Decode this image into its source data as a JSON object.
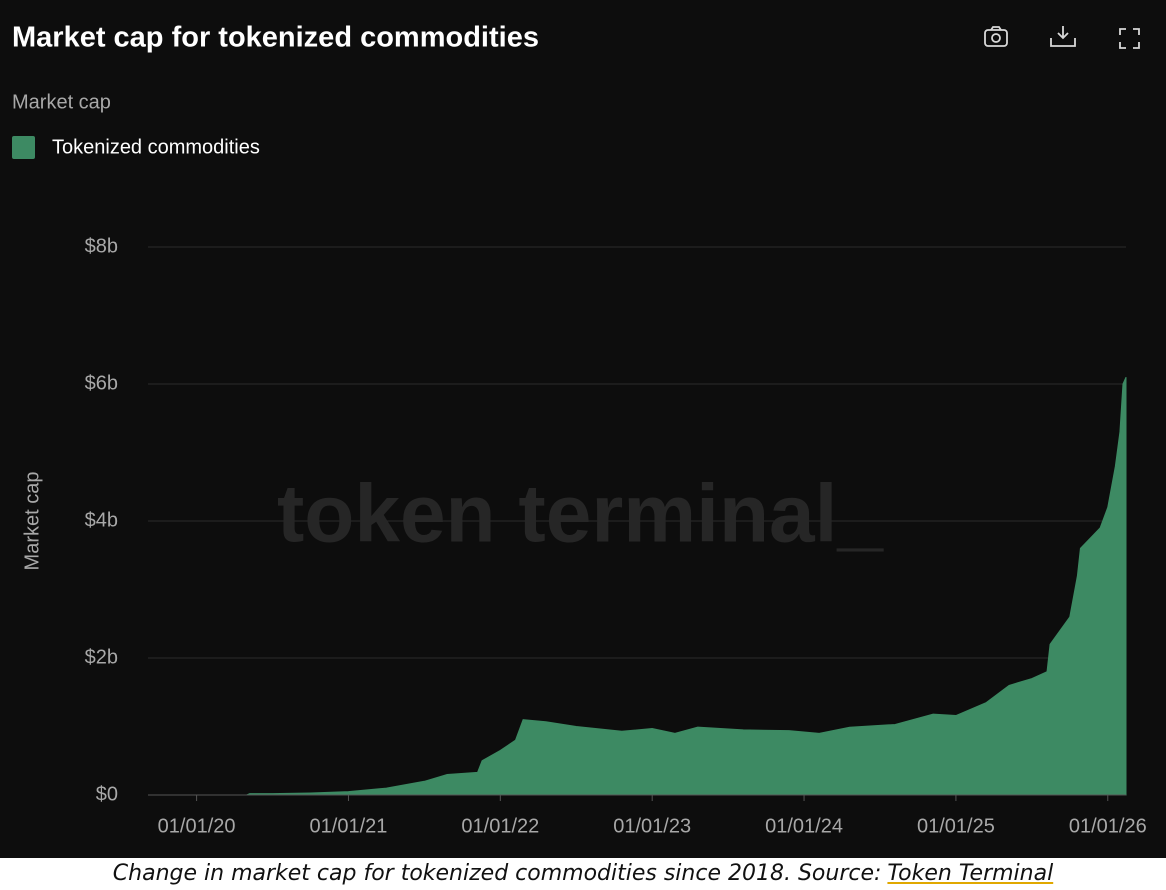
{
  "chart_data": {
    "type": "area",
    "title": "Market cap for tokenized commodities",
    "legend_title": "Market cap",
    "y_label": "Market cap",
    "watermark": "token terminal_",
    "series": [
      {
        "name": "Tokenized commodities",
        "color": "#3d8a63",
        "x": [
          2019.68,
          2020.33,
          2020.35,
          2020.5,
          2020.75,
          2021.0,
          2021.25,
          2021.5,
          2021.65,
          2021.85,
          2021.88,
          2022.0,
          2022.1,
          2022.15,
          2022.3,
          2022.5,
          2022.8,
          2023.0,
          2023.15,
          2023.3,
          2023.6,
          2023.9,
          2024.1,
          2024.3,
          2024.6,
          2024.85,
          2025.0,
          2025.2,
          2025.35,
          2025.5,
          2025.6,
          2025.62,
          2025.75,
          2025.8,
          2025.82,
          2025.95,
          2026.0,
          2026.05,
          2026.08,
          2026.1,
          2026.12
        ],
        "values": [
          0,
          0,
          0.02,
          0.02,
          0.03,
          0.05,
          0.1,
          0.2,
          0.3,
          0.33,
          0.5,
          0.65,
          0.8,
          1.1,
          1.07,
          1.0,
          0.93,
          0.97,
          0.9,
          0.99,
          0.95,
          0.94,
          0.9,
          0.99,
          1.03,
          1.18,
          1.16,
          1.35,
          1.6,
          1.7,
          1.8,
          2.2,
          2.6,
          3.2,
          3.6,
          3.9,
          4.2,
          4.8,
          5.3,
          6.0,
          6.1
        ]
      }
    ],
    "xlim": [
      2019.68,
      2026.12
    ],
    "xticks": [
      {
        "value": 2020,
        "label": "01/01/20"
      },
      {
        "value": 2021,
        "label": "01/01/21"
      },
      {
        "value": 2022,
        "label": "01/01/22"
      },
      {
        "value": 2023,
        "label": "01/01/23"
      },
      {
        "value": 2024,
        "label": "01/01/24"
      },
      {
        "value": 2025,
        "label": "01/01/25"
      },
      {
        "value": 2026,
        "label": "01/01/26"
      }
    ],
    "ylim": [
      0,
      8
    ],
    "yticks": [
      {
        "value": 0,
        "label": "$0"
      },
      {
        "value": 2,
        "label": "$2b"
      },
      {
        "value": 4,
        "label": "$4b"
      },
      {
        "value": 6,
        "label": "$6b"
      },
      {
        "value": 8,
        "label": "$8b"
      }
    ],
    "grid": true
  },
  "caption": {
    "text": "Change in market cap for tokenized commodities since 2018. Source:",
    "link": "Token Terminal"
  }
}
